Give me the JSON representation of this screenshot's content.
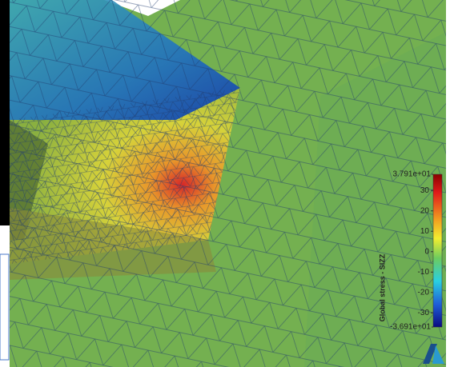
{
  "colorbar": {
    "title": "Global stress - SIZZ",
    "range": [
      {
        "value": -36.91,
        "label": "-3.691e+01"
      },
      {
        "value": 37.91,
        "label": "3.791e+01"
      }
    ],
    "ticks": [
      30,
      20,
      10,
      0,
      -10,
      -20,
      -30
    ]
  }
}
